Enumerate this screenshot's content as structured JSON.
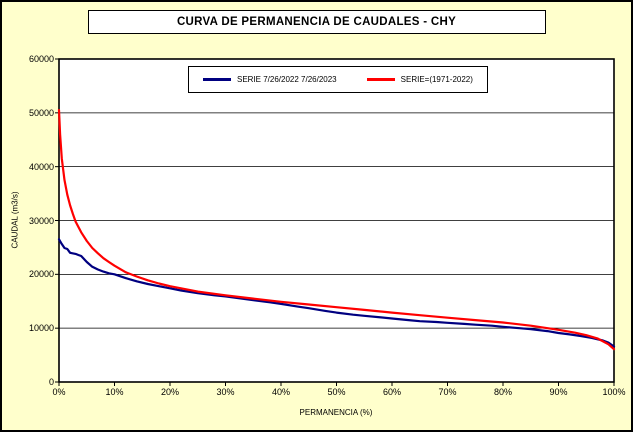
{
  "chart_data": {
    "type": "line",
    "title": "CURVA DE PERMANENCIA DE CAUDALES - CHY",
    "xlabel": "PERMANENCIA (%)",
    "ylabel": "CAUDAL (m3/s)",
    "xlim": [
      0,
      100
    ],
    "ylim": [
      0,
      60000
    ],
    "x_ticks": [
      "0%",
      "10%",
      "20%",
      "30%",
      "40%",
      "50%",
      "60%",
      "70%",
      "80%",
      "90%",
      "100%"
    ],
    "y_ticks": [
      0,
      10000,
      20000,
      30000,
      40000,
      50000,
      60000
    ],
    "grid": "horizontal",
    "legend_position": "top-center-inside",
    "series": [
      {
        "name": "SERIE 7/26/2022 7/26/2023",
        "color": "#000080",
        "x": [
          0,
          0.4,
          1,
          1.5,
          2,
          3,
          3.5,
          4,
          5,
          6,
          7,
          8,
          9,
          10,
          12,
          14,
          16,
          18,
          20,
          22,
          25,
          28,
          30,
          33,
          35,
          38,
          40,
          43,
          45,
          48,
          50,
          53,
          55,
          58,
          60,
          63,
          65,
          68,
          70,
          73,
          75,
          78,
          80,
          83,
          85,
          88,
          90,
          92,
          94,
          96,
          98,
          99,
          100
        ],
        "y": [
          26500,
          25800,
          24900,
          24700,
          24000,
          23800,
          23600,
          23400,
          22300,
          21400,
          20900,
          20500,
          20200,
          20000,
          19300,
          18700,
          18200,
          17800,
          17400,
          17000,
          16500,
          16100,
          15900,
          15500,
          15200,
          14800,
          14500,
          14000,
          13700,
          13200,
          12900,
          12500,
          12300,
          12000,
          11800,
          11500,
          11300,
          11150,
          11000,
          10800,
          10650,
          10450,
          10250,
          10000,
          9800,
          9450,
          9100,
          8850,
          8550,
          8200,
          7700,
          7300,
          6600
        ]
      },
      {
        "name": "SERIE=(1971-2022)",
        "color": "#ff0000",
        "x": [
          0,
          0.2,
          0.5,
          1,
          1.5,
          2,
          2.5,
          3,
          4,
          5,
          6,
          7,
          8,
          9,
          10,
          12,
          14,
          16,
          18,
          20,
          25,
          30,
          35,
          40,
          45,
          50,
          55,
          60,
          65,
          70,
          75,
          80,
          85,
          90,
          93,
          95,
          97,
          99,
          100
        ],
        "y": [
          50500,
          46000,
          41500,
          37500,
          34800,
          32800,
          31200,
          29800,
          27800,
          26200,
          24900,
          23900,
          23000,
          22300,
          21600,
          20400,
          19600,
          18900,
          18300,
          17800,
          16800,
          16100,
          15500,
          14900,
          14400,
          13900,
          13400,
          12900,
          12400,
          11950,
          11500,
          11050,
          10450,
          9700,
          9150,
          8700,
          8100,
          7000,
          6100
        ]
      }
    ]
  },
  "colors": {
    "background": "#ffffcc",
    "plot_background": "#ffffff",
    "axis": "#000000"
  }
}
